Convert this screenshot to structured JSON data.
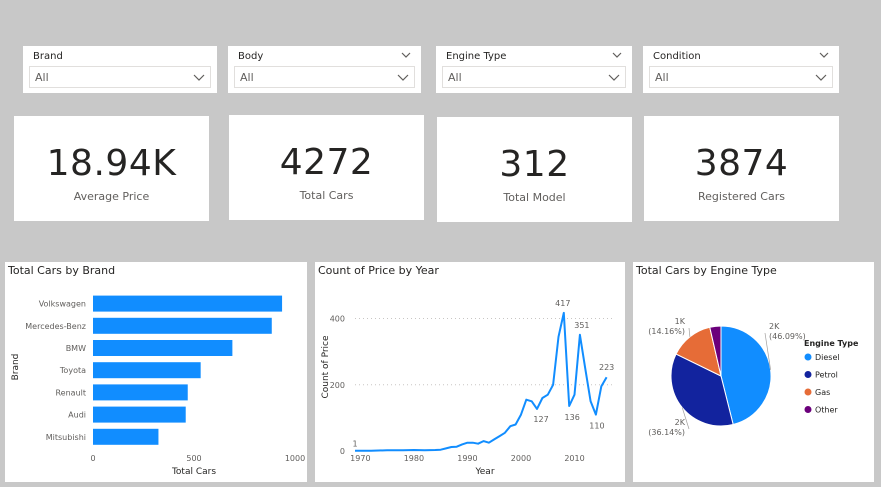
{
  "colors": {
    "accent": "#118DFF",
    "background": "#c8c8c8",
    "card": "#ffffff"
  },
  "slicers": [
    {
      "title": "Brand",
      "value": "All"
    },
    {
      "title": "Body",
      "value": "All"
    },
    {
      "title": "Engine Type",
      "value": "All"
    },
    {
      "title": "Condition",
      "value": "All"
    }
  ],
  "cards": [
    {
      "value": "18.94K",
      "label": "Average Price"
    },
    {
      "value": "4272",
      "label": "Total Cars"
    },
    {
      "value": "312",
      "label": "Total Model"
    },
    {
      "value": "3874",
      "label": "Registered Cars"
    }
  ],
  "chart_data": [
    {
      "type": "bar",
      "orientation": "horizontal",
      "title": "Total Cars by Brand",
      "categories": [
        "Volkswagen",
        "Mercedes-Benz",
        "BMW",
        "Toyota",
        "Renault",
        "Audi",
        "Mitsubishi"
      ],
      "values": [
        936,
        885,
        690,
        533,
        469,
        459,
        324
      ],
      "xlabel": "Total Cars",
      "ylabel": "Brand",
      "xlim": [
        0,
        1000
      ],
      "xticks": [
        "0",
        "500",
        "1000"
      ],
      "color": "#118DFF"
    },
    {
      "type": "line",
      "title": "Count of Price by Year",
      "x": [
        1969,
        1970,
        1972,
        1975,
        1978,
        1980,
        1982,
        1984,
        1985,
        1986,
        1987,
        1988,
        1989,
        1990,
        1991,
        1992,
        1993,
        1994,
        1995,
        1996,
        1997,
        1998,
        1999,
        2000,
        2001,
        2002,
        2003,
        2004,
        2005,
        2006,
        2007,
        2008,
        2009,
        2010,
        2011,
        2012,
        2013,
        2014,
        2015,
        2016
      ],
      "y": [
        1,
        1,
        1,
        2,
        2,
        3,
        2,
        3,
        4,
        8,
        12,
        13,
        20,
        25,
        25,
        22,
        30,
        25,
        35,
        45,
        55,
        75,
        80,
        110,
        155,
        150,
        127,
        160,
        170,
        200,
        345,
        417,
        136,
        170,
        351,
        250,
        150,
        110,
        195,
        223
      ],
      "labels": [
        {
          "x": 1969,
          "y": 1,
          "text": "1"
        },
        {
          "x": 2003,
          "y": 127,
          "text": "127"
        },
        {
          "x": 2008,
          "y": 417,
          "text": "417"
        },
        {
          "x": 2009,
          "y": 136,
          "text": "136"
        },
        {
          "x": 2011,
          "y": 351,
          "text": "351"
        },
        {
          "x": 2014,
          "y": 110,
          "text": "110"
        },
        {
          "x": 2016,
          "y": 223,
          "text": "223"
        }
      ],
      "xlabel": "Year",
      "ylabel": "Count of Price",
      "xticks": [
        "1970",
        "1980",
        "1990",
        "2000",
        "2010"
      ],
      "yticks": [
        "0",
        "200",
        "400"
      ],
      "xlim": [
        1969,
        2017
      ],
      "ylim": [
        0,
        450
      ],
      "color": "#118DFF"
    },
    {
      "type": "pie",
      "title": "Total Cars by Engine Type",
      "legend_title": "Engine Type",
      "slices": [
        {
          "name": "Diesel",
          "value": 46.09,
          "label": "2K",
          "pct": "(46.09%)",
          "color": "#118DFF"
        },
        {
          "name": "Petrol",
          "value": 36.14,
          "label": "2K",
          "pct": "(36.14%)",
          "color": "#12239E"
        },
        {
          "name": "Gas",
          "value": 14.16,
          "label": "1K",
          "pct": "(14.16%)",
          "color": "#E66C37"
        },
        {
          "name": "Other",
          "value": 3.61,
          "label": "",
          "pct": "",
          "color": "#6B007B"
        }
      ]
    }
  ]
}
